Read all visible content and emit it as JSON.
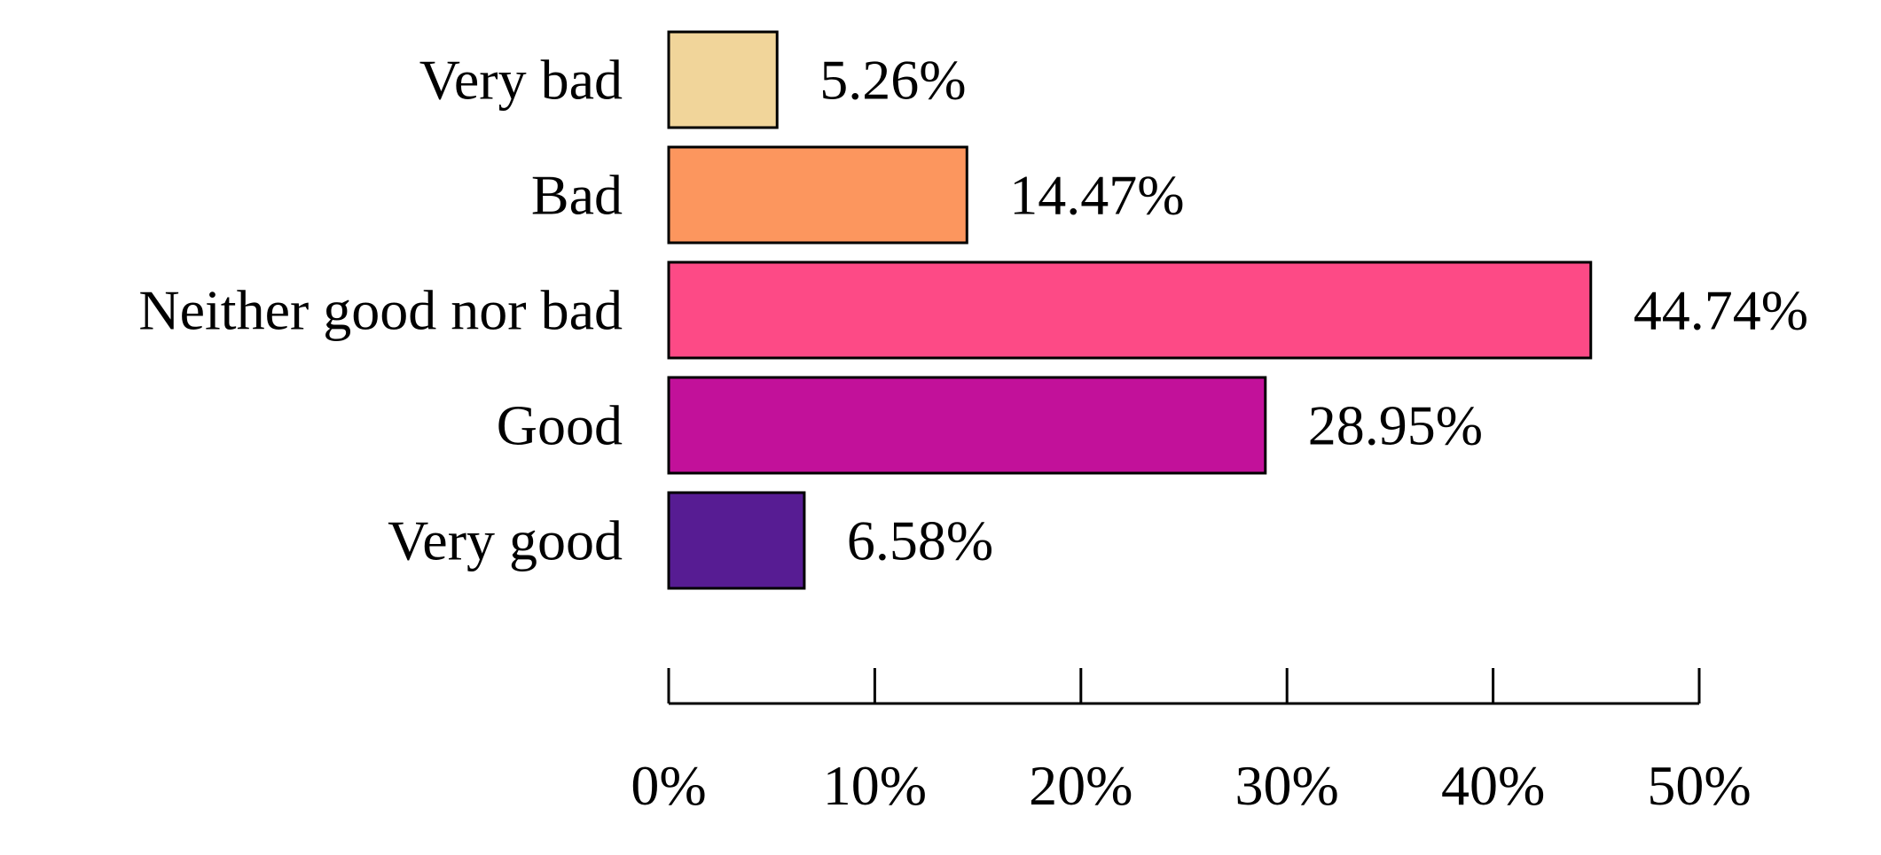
{
  "chart_data": {
    "type": "bar",
    "orientation": "horizontal",
    "categories": [
      "Very bad",
      "Bad",
      "Neither good nor bad",
      "Good",
      "Very good"
    ],
    "values": [
      5.26,
      14.47,
      44.74,
      28.95,
      6.58
    ],
    "data_labels": [
      "5.26%",
      "14.47%",
      "44.74%",
      "28.95%",
      "6.58%"
    ],
    "colors": [
      "#F1D59A",
      "#FC965E",
      "#FD4A86",
      "#C2119A",
      "#571C93"
    ],
    "xlim": [
      0,
      50
    ],
    "x_ticks": [
      0,
      10,
      20,
      30,
      40,
      50
    ],
    "x_tick_labels": [
      "0%",
      "10%",
      "20%",
      "30%",
      "40%",
      "50%"
    ],
    "title": "",
    "xlabel": "",
    "ylabel": "",
    "grid": false,
    "legend": "none"
  }
}
